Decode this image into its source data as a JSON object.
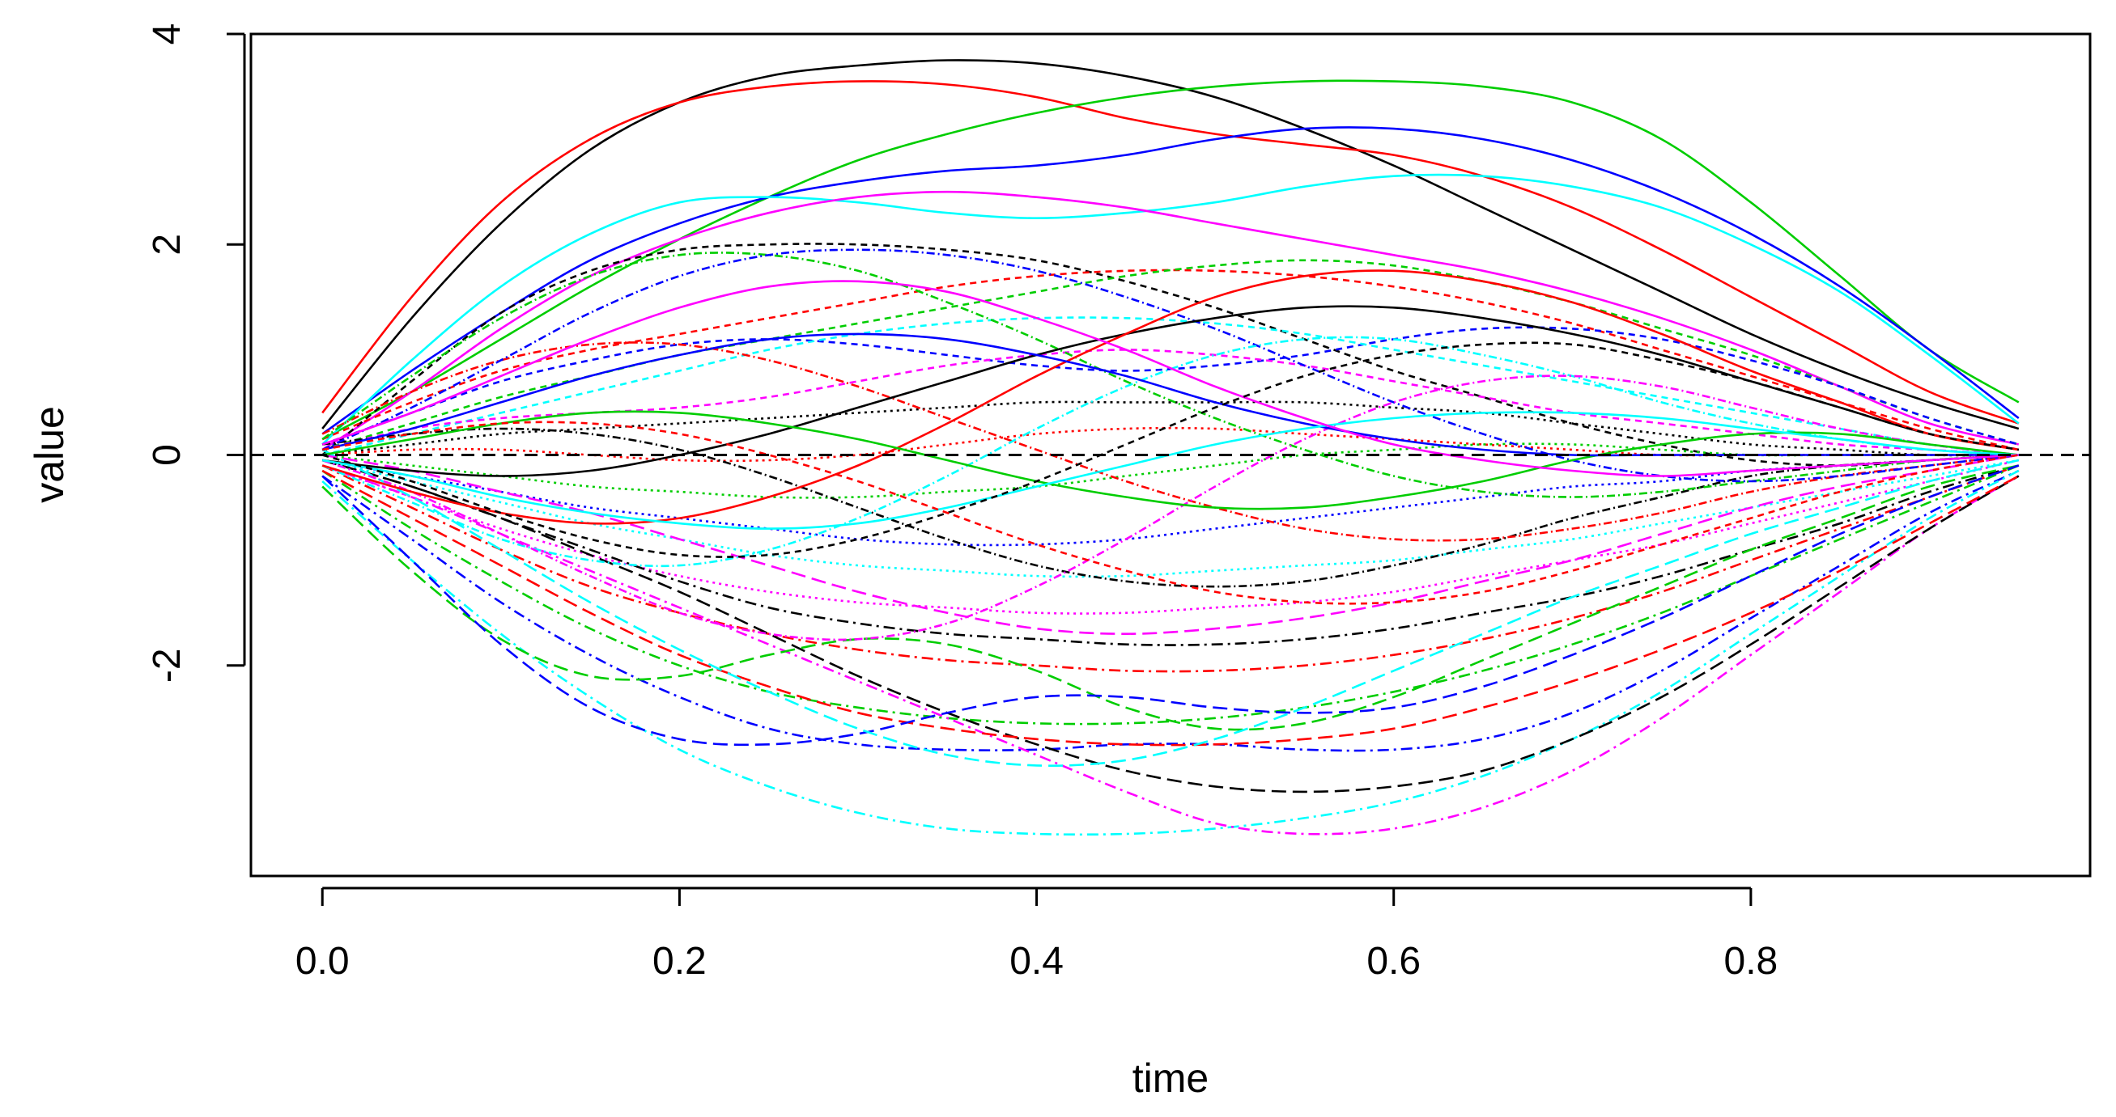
{
  "chart_data": {
    "type": "line",
    "title": "",
    "xlabel": "time",
    "ylabel": "value",
    "xlim": [
      -0.04,
      0.99
    ],
    "ylim": [
      -4.0,
      4.0
    ],
    "xticks": [
      0.0,
      0.2,
      0.4,
      0.6,
      0.8
    ],
    "xtick_labels": [
      "0.0",
      "0.2",
      "0.4",
      "0.6",
      "0.8"
    ],
    "yticks": [
      -2,
      0,
      2,
      4
    ],
    "ytick_labels": [
      "-2",
      "0",
      "2",
      "4"
    ],
    "grid": false,
    "legend": "none",
    "reference_line": {
      "y": 0,
      "style": "dashed",
      "color": "#000000"
    },
    "line_colors": [
      "#000000",
      "#ff0000",
      "#00cd00",
      "#0000ff",
      "#00ffff",
      "#ff00ff"
    ],
    "x": [
      0.0,
      0.05,
      0.1,
      0.15,
      0.2,
      0.25,
      0.3,
      0.35,
      0.4,
      0.45,
      0.5,
      0.55,
      0.6,
      0.65,
      0.7,
      0.75,
      0.8,
      0.85,
      0.9,
      0.95
    ],
    "series": [
      {
        "values": [
          0.25,
          1.3,
          2.2,
          2.9,
          3.35,
          3.6,
          3.7,
          3.75,
          3.72,
          3.6,
          3.4,
          3.1,
          2.75,
          2.35,
          1.95,
          1.55,
          1.15,
          0.8,
          0.5,
          0.25
        ]
      },
      {
        "values": [
          0.4,
          1.5,
          2.4,
          3.0,
          3.35,
          3.5,
          3.55,
          3.52,
          3.4,
          3.2,
          3.05,
          2.95,
          2.85,
          2.65,
          2.35,
          1.95,
          1.5,
          1.05,
          0.6,
          0.3
        ]
      },
      {
        "values": [
          0.15,
          0.6,
          1.1,
          1.6,
          2.05,
          2.45,
          2.8,
          3.05,
          3.25,
          3.4,
          3.5,
          3.55,
          3.55,
          3.5,
          3.35,
          3.0,
          2.4,
          1.7,
          1.0,
          0.5
        ]
      },
      {
        "values": [
          0.2,
          0.8,
          1.35,
          1.85,
          2.2,
          2.45,
          2.6,
          2.7,
          2.75,
          2.85,
          3.0,
          3.1,
          3.1,
          3.0,
          2.8,
          2.5,
          2.1,
          1.6,
          1.0,
          0.35
        ]
      },
      {
        "values": [
          0.1,
          0.9,
          1.6,
          2.1,
          2.4,
          2.45,
          2.4,
          2.3,
          2.25,
          2.3,
          2.4,
          2.55,
          2.65,
          2.65,
          2.55,
          2.35,
          2.0,
          1.55,
          0.95,
          0.3
        ]
      },
      {
        "values": [
          0.05,
          0.6,
          1.2,
          1.7,
          2.05,
          2.3,
          2.45,
          2.5,
          2.45,
          2.35,
          2.2,
          2.05,
          1.9,
          1.75,
          1.55,
          1.3,
          1.0,
          0.65,
          0.3,
          0.1
        ]
      },
      {
        "values": [
          0.0,
          0.7,
          1.35,
          1.75,
          1.95,
          2.0,
          2.0,
          1.95,
          1.85,
          1.65,
          1.4,
          1.1,
          0.8,
          0.55,
          0.3,
          0.1,
          -0.05,
          -0.1,
          -0.05,
          0.0
        ]
      },
      {
        "values": [
          0.15,
          0.5,
          0.8,
          1.0,
          1.15,
          1.3,
          1.45,
          1.6,
          1.7,
          1.75,
          1.75,
          1.7,
          1.6,
          1.45,
          1.25,
          1.0,
          0.75,
          0.5,
          0.25,
          0.05
        ]
      },
      {
        "values": [
          0.05,
          0.3,
          0.55,
          0.75,
          0.95,
          1.1,
          1.25,
          1.4,
          1.55,
          1.7,
          1.8,
          1.85,
          1.8,
          1.65,
          1.45,
          1.2,
          0.95,
          0.65,
          0.35,
          0.1
        ]
      },
      {
        "values": [
          0.1,
          0.4,
          0.7,
          0.9,
          1.05,
          1.1,
          1.05,
          0.95,
          0.85,
          0.8,
          0.85,
          0.95,
          1.1,
          1.2,
          1.2,
          1.1,
          0.9,
          0.65,
          0.35,
          0.1
        ]
      },
      {
        "values": [
          0.0,
          0.2,
          0.4,
          0.6,
          0.8,
          1.0,
          1.15,
          1.25,
          1.3,
          1.3,
          1.25,
          1.15,
          1.0,
          0.85,
          0.7,
          0.55,
          0.4,
          0.25,
          0.1,
          0.0
        ]
      },
      {
        "values": [
          0.05,
          0.25,
          0.35,
          0.4,
          0.45,
          0.55,
          0.7,
          0.85,
          0.95,
          1.0,
          0.95,
          0.85,
          0.7,
          0.55,
          0.4,
          0.3,
          0.2,
          0.1,
          0.05,
          0.0
        ]
      },
      {
        "values": [
          0.0,
          0.1,
          0.2,
          0.25,
          0.3,
          0.35,
          0.4,
          0.45,
          0.5,
          0.5,
          0.5,
          0.5,
          0.45,
          0.4,
          0.3,
          0.2,
          0.1,
          0.05,
          0.0,
          0.0
        ]
      },
      {
        "values": [
          0.0,
          0.05,
          0.05,
          0.0,
          -0.05,
          -0.05,
          0.0,
          0.1,
          0.2,
          0.25,
          0.25,
          0.2,
          0.15,
          0.1,
          0.05,
          0.0,
          0.0,
          0.0,
          0.0,
          0.0
        ]
      },
      {
        "values": [
          0.0,
          -0.1,
          -0.2,
          -0.3,
          -0.35,
          -0.4,
          -0.4,
          -0.35,
          -0.3,
          -0.2,
          -0.1,
          0.0,
          0.05,
          0.1,
          0.1,
          0.05,
          0.0,
          0.0,
          0.0,
          0.0
        ]
      },
      {
        "values": [
          -0.05,
          -0.2,
          -0.35,
          -0.5,
          -0.6,
          -0.7,
          -0.8,
          -0.85,
          -0.85,
          -0.8,
          -0.7,
          -0.6,
          -0.5,
          -0.4,
          -0.3,
          -0.25,
          -0.15,
          -0.1,
          -0.05,
          0.0
        ]
      },
      {
        "values": [
          -0.05,
          -0.25,
          -0.45,
          -0.65,
          -0.8,
          -0.95,
          -1.05,
          -1.1,
          -1.15,
          -1.15,
          -1.1,
          -1.05,
          -1.0,
          -0.9,
          -0.8,
          -0.65,
          -0.5,
          -0.35,
          -0.2,
          -0.05
        ]
      },
      {
        "values": [
          -0.1,
          -0.4,
          -0.7,
          -0.95,
          -1.15,
          -1.3,
          -1.4,
          -1.45,
          -1.5,
          -1.5,
          -1.45,
          -1.4,
          -1.3,
          -1.15,
          -1.0,
          -0.85,
          -0.65,
          -0.45,
          -0.25,
          -0.05
        ]
      },
      {
        "values": [
          -0.05,
          -0.3,
          -0.6,
          -0.9,
          -1.2,
          -1.45,
          -1.6,
          -1.7,
          -1.75,
          -1.8,
          -1.8,
          -1.75,
          -1.65,
          -1.5,
          -1.35,
          -1.15,
          -0.9,
          -0.65,
          -0.35,
          -0.1
        ]
      },
      {
        "values": [
          -0.1,
          -0.5,
          -0.9,
          -1.25,
          -1.5,
          -1.7,
          -1.85,
          -1.95,
          -2.0,
          -2.05,
          -2.05,
          -2.0,
          -1.9,
          -1.75,
          -1.55,
          -1.3,
          -1.0,
          -0.7,
          -0.4,
          -0.1
        ]
      },
      {
        "values": [
          -0.15,
          -0.7,
          -1.2,
          -1.65,
          -2.0,
          -2.25,
          -2.4,
          -2.5,
          -2.55,
          -2.55,
          -2.5,
          -2.4,
          -2.25,
          -2.05,
          -1.8,
          -1.5,
          -1.15,
          -0.8,
          -0.45,
          -0.1
        ]
      },
      {
        "values": [
          -0.2,
          -0.8,
          -1.4,
          -1.9,
          -2.3,
          -2.6,
          -2.75,
          -2.8,
          -2.8,
          -2.75,
          -2.75,
          -2.8,
          -2.8,
          -2.7,
          -2.45,
          -2.05,
          -1.55,
          -1.05,
          -0.55,
          -0.15
        ]
      },
      {
        "values": [
          -0.25,
          -1.0,
          -1.7,
          -2.3,
          -2.8,
          -3.15,
          -3.4,
          -3.55,
          -3.6,
          -3.6,
          -3.55,
          -3.45,
          -3.3,
          -3.05,
          -2.7,
          -2.25,
          -1.7,
          -1.15,
          -0.6,
          -0.15
        ]
      },
      {
        "values": [
          -0.1,
          -0.4,
          -0.75,
          -1.1,
          -1.45,
          -1.8,
          -2.15,
          -2.5,
          -2.85,
          -3.2,
          -3.5,
          -3.6,
          -3.55,
          -3.35,
          -3.0,
          -2.5,
          -1.9,
          -1.3,
          -0.7,
          -0.2
        ]
      },
      {
        "values": [
          -0.05,
          -0.3,
          -0.6,
          -0.95,
          -1.3,
          -1.7,
          -2.1,
          -2.45,
          -2.75,
          -3.0,
          -3.15,
          -3.2,
          -3.15,
          -3.0,
          -2.7,
          -2.3,
          -1.8,
          -1.25,
          -0.7,
          -0.2
        ]
      },
      {
        "values": [
          -0.15,
          -0.6,
          -1.05,
          -1.5,
          -1.9,
          -2.2,
          -2.45,
          -2.6,
          -2.7,
          -2.75,
          -2.75,
          -2.7,
          -2.6,
          -2.4,
          -2.15,
          -1.85,
          -1.5,
          -1.1,
          -0.65,
          -0.2
        ]
      },
      {
        "values": [
          -0.3,
          -1.1,
          -1.75,
          -2.1,
          -2.1,
          -1.9,
          -1.75,
          -1.8,
          -2.05,
          -2.4,
          -2.6,
          -2.55,
          -2.3,
          -1.95,
          -1.6,
          -1.25,
          -0.9,
          -0.6,
          -0.3,
          -0.1
        ]
      },
      {
        "values": [
          -0.2,
          -1.0,
          -1.8,
          -2.4,
          -2.7,
          -2.75,
          -2.65,
          -2.45,
          -2.3,
          -2.3,
          -2.4,
          -2.45,
          -2.4,
          -2.2,
          -1.9,
          -1.55,
          -1.15,
          -0.75,
          -0.4,
          -0.1
        ]
      },
      {
        "values": [
          0.05,
          -0.4,
          -0.9,
          -1.4,
          -1.85,
          -2.25,
          -2.6,
          -2.85,
          -2.95,
          -2.9,
          -2.7,
          -2.4,
          -2.05,
          -1.7,
          -1.35,
          -1.05,
          -0.75,
          -0.5,
          -0.25,
          -0.05
        ]
      },
      {
        "values": [
          0.0,
          -0.15,
          -0.35,
          -0.55,
          -0.8,
          -1.05,
          -1.3,
          -1.5,
          -1.65,
          -1.7,
          -1.65,
          -1.55,
          -1.4,
          -1.2,
          -1.0,
          -0.75,
          -0.5,
          -0.3,
          -0.15,
          0.0
        ]
      },
      {
        "values": [
          0.1,
          0.2,
          0.25,
          0.2,
          0.05,
          -0.2,
          -0.5,
          -0.8,
          -1.05,
          -1.2,
          -1.25,
          -1.2,
          -1.05,
          -0.85,
          -0.6,
          -0.4,
          -0.2,
          -0.1,
          -0.05,
          0.0
        ]
      },
      {
        "values": [
          0.2,
          0.6,
          0.9,
          1.05,
          1.05,
          0.9,
          0.65,
          0.35,
          0.05,
          -0.25,
          -0.5,
          -0.7,
          -0.8,
          -0.8,
          -0.7,
          -0.55,
          -0.35,
          -0.2,
          -0.1,
          0.0
        ]
      },
      {
        "values": [
          0.15,
          0.75,
          1.3,
          1.7,
          1.9,
          1.9,
          1.75,
          1.45,
          1.1,
          0.7,
          0.35,
          0.05,
          -0.2,
          -0.35,
          -0.4,
          -0.35,
          -0.25,
          -0.15,
          -0.05,
          0.0
        ]
      },
      {
        "values": [
          0.05,
          0.45,
          0.9,
          1.35,
          1.7,
          1.9,
          1.95,
          1.9,
          1.75,
          1.5,
          1.2,
          0.85,
          0.5,
          0.2,
          -0.05,
          -0.2,
          -0.25,
          -0.2,
          -0.1,
          0.0
        ]
      },
      {
        "values": [
          -0.1,
          -0.45,
          -0.8,
          -1.0,
          -1.05,
          -0.9,
          -0.6,
          -0.2,
          0.25,
          0.65,
          0.95,
          1.1,
          1.1,
          0.95,
          0.75,
          0.5,
          0.3,
          0.15,
          0.05,
          0.0
        ]
      },
      {
        "values": [
          -0.05,
          -0.35,
          -0.75,
          -1.15,
          -1.5,
          -1.7,
          -1.75,
          -1.6,
          -1.25,
          -0.8,
          -0.3,
          0.15,
          0.5,
          0.7,
          0.75,
          0.65,
          0.45,
          0.25,
          0.1,
          0.0
        ]
      },
      {
        "values": [
          -0.05,
          -0.15,
          -0.2,
          -0.15,
          0.0,
          0.2,
          0.45,
          0.7,
          0.95,
          1.15,
          1.3,
          1.4,
          1.4,
          1.3,
          1.15,
          0.95,
          0.7,
          0.45,
          0.2,
          0.05
        ]
      },
      {
        "values": [
          -0.1,
          -0.35,
          -0.55,
          -0.65,
          -0.6,
          -0.4,
          -0.1,
          0.3,
          0.75,
          1.15,
          1.5,
          1.7,
          1.75,
          1.65,
          1.45,
          1.15,
          0.8,
          0.5,
          0.2,
          0.05
        ]
      },
      {
        "values": [
          0.0,
          0.15,
          0.3,
          0.4,
          0.4,
          0.3,
          0.15,
          -0.05,
          -0.25,
          -0.4,
          -0.5,
          -0.5,
          -0.4,
          -0.25,
          -0.05,
          0.1,
          0.2,
          0.2,
          0.1,
          0.0
        ]
      },
      {
        "values": [
          0.05,
          0.25,
          0.5,
          0.75,
          0.95,
          1.1,
          1.15,
          1.1,
          0.95,
          0.75,
          0.5,
          0.3,
          0.15,
          0.05,
          0.0,
          0.0,
          0.0,
          0.0,
          0.0,
          0.0
        ]
      },
      {
        "values": [
          -0.05,
          -0.2,
          -0.4,
          -0.55,
          -0.65,
          -0.7,
          -0.65,
          -0.5,
          -0.3,
          -0.1,
          0.1,
          0.25,
          0.35,
          0.4,
          0.4,
          0.35,
          0.25,
          0.15,
          0.05,
          0.0
        ]
      },
      {
        "values": [
          0.1,
          0.4,
          0.75,
          1.1,
          1.4,
          1.6,
          1.65,
          1.55,
          1.3,
          1.0,
          0.65,
          0.35,
          0.1,
          -0.05,
          -0.15,
          -0.2,
          -0.15,
          -0.1,
          -0.05,
          0.0
        ]
      },
      {
        "values": [
          0.0,
          -0.25,
          -0.55,
          -0.8,
          -0.95,
          -0.95,
          -0.8,
          -0.55,
          -0.25,
          0.1,
          0.45,
          0.75,
          0.95,
          1.05,
          1.05,
          0.9,
          0.7,
          0.45,
          0.2,
          0.05
        ]
      },
      {
        "values": [
          0.05,
          0.2,
          0.3,
          0.3,
          0.2,
          0.0,
          -0.25,
          -0.55,
          -0.85,
          -1.1,
          -1.3,
          -1.4,
          -1.4,
          -1.3,
          -1.1,
          -0.85,
          -0.6,
          -0.35,
          -0.15,
          0.0
        ]
      }
    ]
  }
}
